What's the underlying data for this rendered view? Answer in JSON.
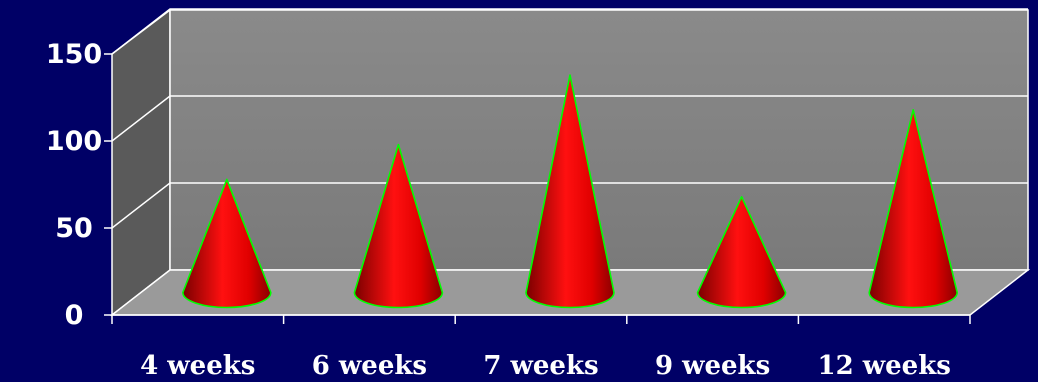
{
  "chart_data": {
    "type": "bar",
    "categories": [
      "4 weeks",
      "6 weeks",
      "7 weeks",
      "9 weeks",
      "12 weeks"
    ],
    "values": [
      65,
      85,
      125,
      55,
      105
    ],
    "yticks": [
      "0",
      "50",
      "100",
      "150"
    ],
    "ylim": [
      0,
      150
    ],
    "grid": true,
    "colors": {
      "background": "#000066",
      "back_wall": "#808080",
      "side_wall": "#5a5a5a",
      "floor": "#9a9a9a",
      "cone": "#ff0000",
      "cone_outline": "#00ff00",
      "gridline": "#ffffff"
    }
  }
}
